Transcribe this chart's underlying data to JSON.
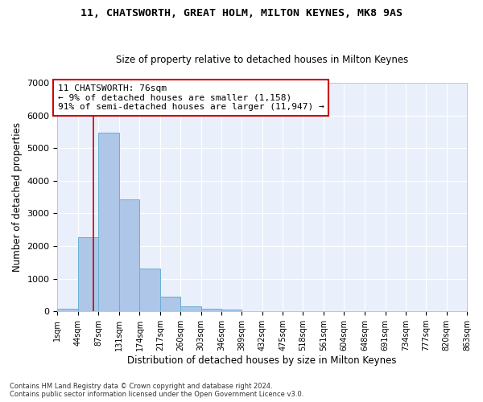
{
  "title1": "11, CHATSWORTH, GREAT HOLM, MILTON KEYNES, MK8 9AS",
  "title2": "Size of property relative to detached houses in Milton Keynes",
  "xlabel": "Distribution of detached houses by size in Milton Keynes",
  "ylabel": "Number of detached properties",
  "footnote1": "Contains HM Land Registry data © Crown copyright and database right 2024.",
  "footnote2": "Contains public sector information licensed under the Open Government Licence v3.0.",
  "bar_edges": [
    1,
    44,
    87,
    131,
    174,
    217,
    260,
    303,
    346,
    389,
    432,
    475,
    518,
    561,
    604,
    648,
    691,
    734,
    777,
    820,
    863
  ],
  "bar_heights": [
    70,
    2270,
    5470,
    3430,
    1310,
    460,
    155,
    80,
    55,
    0,
    0,
    0,
    0,
    0,
    0,
    0,
    0,
    0,
    0,
    0
  ],
  "bar_color": "#aec6e8",
  "bar_edge_color": "#6baed6",
  "bg_color": "#eaf0fb",
  "grid_color": "#ffffff",
  "vline_x": 76,
  "vline_color": "#cc0000",
  "ylim": [
    0,
    7000
  ],
  "yticks": [
    0,
    1000,
    2000,
    3000,
    4000,
    5000,
    6000,
    7000
  ],
  "annotation_text": "11 CHATSWORTH: 76sqm\n← 9% of detached houses are smaller (1,158)\n91% of semi-detached houses are larger (11,947) →",
  "annotation_box_color": "#ffffff",
  "annotation_box_edge_color": "#cc0000",
  "tick_labels": [
    "1sqm",
    "44sqm",
    "87sqm",
    "131sqm",
    "174sqm",
    "217sqm",
    "260sqm",
    "303sqm",
    "346sqm",
    "389sqm",
    "432sqm",
    "475sqm",
    "518sqm",
    "561sqm",
    "604sqm",
    "648sqm",
    "691sqm",
    "734sqm",
    "777sqm",
    "820sqm",
    "863sqm"
  ],
  "title1_fontsize": 9.5,
  "title2_fontsize": 8.5,
  "ylabel_fontsize": 8.5,
  "xlabel_fontsize": 8.5,
  "tick_fontsize": 7,
  "ytick_fontsize": 8,
  "footnote_fontsize": 6,
  "annot_fontsize": 8
}
